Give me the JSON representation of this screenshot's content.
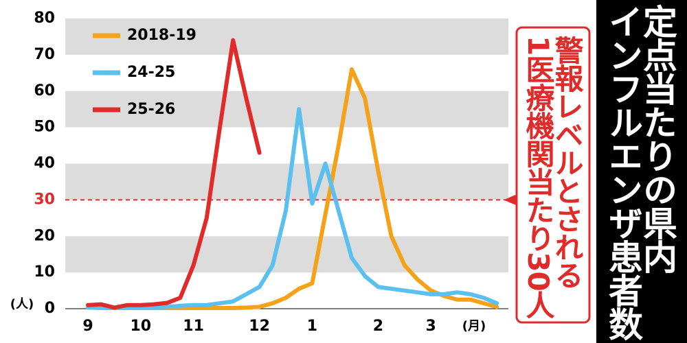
{
  "chart_data": {
    "type": "line",
    "title": [
      "定点当たりの県内",
      "インフルエンザ患者数"
    ],
    "annotation": [
      "警報レベルとされる",
      "1医療機関当たり30人"
    ],
    "y_unit": "(人)",
    "x_unit": "(月)",
    "categories": [
      "9",
      null,
      null,
      null,
      "10",
      null,
      null,
      null,
      "11",
      null,
      null,
      null,
      null,
      "12",
      null,
      null,
      null,
      "1",
      null,
      null,
      null,
      null,
      "2",
      null,
      null,
      null,
      "3",
      null,
      null,
      null,
      null,
      null
    ],
    "series": [
      {
        "name": "2018-19",
        "color": "#f5a21b",
        "values": [
          0.3,
          0.2,
          0.2,
          0.2,
          0.2,
          0.2,
          0.2,
          0.2,
          0.2,
          0.2,
          0.2,
          0.2,
          0.3,
          0.5,
          1.5,
          3,
          5.5,
          7,
          26,
          45,
          66,
          58,
          38,
          20,
          12,
          8,
          5,
          3.5,
          2.5,
          2.5,
          1.5,
          0.5
        ]
      },
      {
        "name": "24-25",
        "color": "#5bc0f0",
        "values": [
          0.3,
          0.3,
          0.3,
          0.3,
          0.3,
          0.3,
          0.5,
          0.8,
          1,
          1,
          1.5,
          2,
          4,
          6,
          12,
          27,
          55,
          29,
          40,
          27,
          14,
          9,
          6,
          5.5,
          5,
          4.5,
          4,
          4,
          4.5,
          4,
          3,
          1.5
        ]
      },
      {
        "name": "25-26",
        "color": "#e02b2b",
        "values": [
          1,
          1.2,
          0.3,
          1,
          1,
          1.2,
          1.6,
          3,
          12,
          25,
          50,
          74,
          58,
          43,
          null,
          null,
          null,
          null,
          null,
          null,
          null,
          null,
          null,
          null,
          null,
          null,
          null,
          null,
          null,
          null,
          null,
          null
        ]
      }
    ],
    "ylim": [
      0,
      80
    ],
    "yticks": [
      0,
      10,
      20,
      30,
      40,
      50,
      60,
      70,
      80
    ],
    "threshold": {
      "value": 30,
      "color": "#e02b2b"
    },
    "grid": "bands"
  }
}
